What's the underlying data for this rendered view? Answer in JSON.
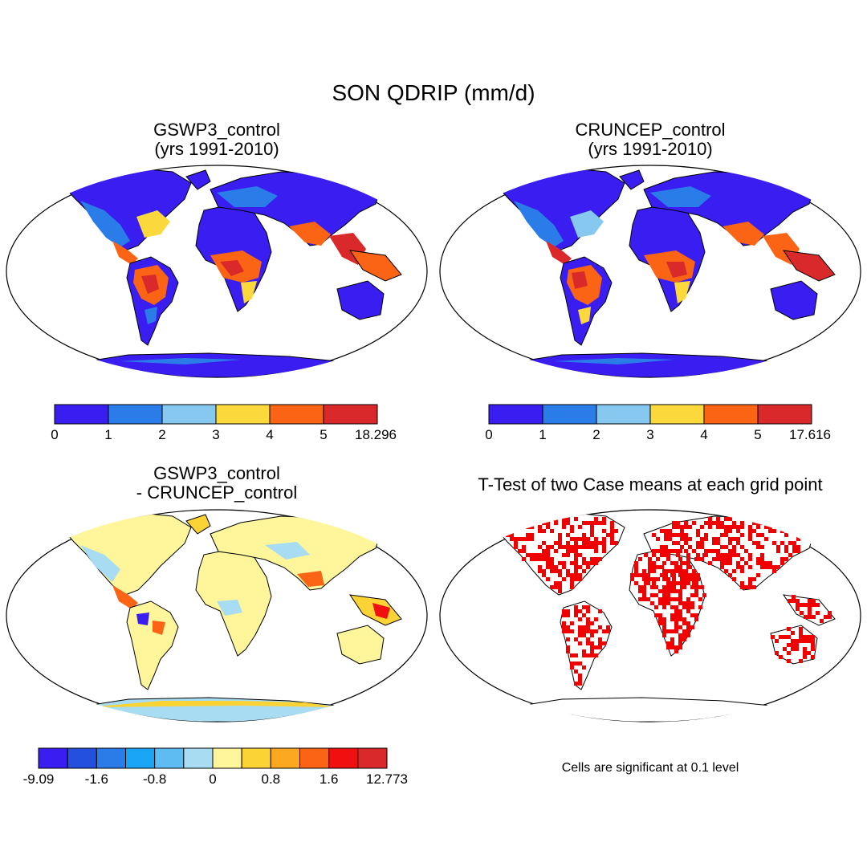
{
  "main_title": "SON QDRIP (mm/d)",
  "panels": {
    "p1": {
      "title_line1": "GSWP3_control",
      "title_line2": "(yrs 1991-2010)"
    },
    "p2": {
      "title_line1": "CRUNCEP_control",
      "title_line2": "(yrs 1991-2010)"
    },
    "p3": {
      "title_line1": "GSWP3_control",
      "title_line2": "- CRUNCEP_control"
    },
    "p4": {
      "title_line1": "T-Test of two Case means at each grid point"
    }
  },
  "colorbar1": {
    "labels": [
      "0",
      "1",
      "2",
      "3",
      "4",
      "5",
      "18.296"
    ],
    "colors": [
      "#3a1df0",
      "#2a7de8",
      "#86c8f0",
      "#fbd83c",
      "#fa6414",
      "#d9292a"
    ]
  },
  "colorbar2": {
    "labels": [
      "0",
      "1",
      "2",
      "3",
      "4",
      "5",
      "17.616"
    ],
    "colors": [
      "#3a1df0",
      "#2a7de8",
      "#86c8f0",
      "#fbd83c",
      "#fa6414",
      "#d9292a"
    ]
  },
  "colorbar3": {
    "labels": [
      "-9.09",
      "-1.6",
      "-0.8",
      "0",
      "0.8",
      "1.6",
      "12.773"
    ],
    "colors": [
      "#3a1df0",
      "#2450e0",
      "#2a7de8",
      "#19a4f5",
      "#5fbcf3",
      "#a8dcf2",
      "#fff59a",
      "#fbd335",
      "#fba71f",
      "#fa6414",
      "#f01010",
      "#d9292a"
    ]
  },
  "significance_note": "Cells are significant at 0.1 level",
  "significance_color": "#f00000"
}
